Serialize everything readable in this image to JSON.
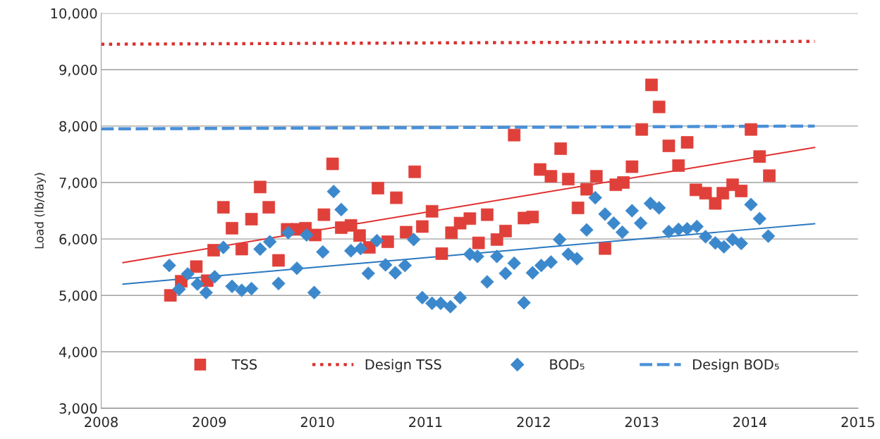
{
  "chart_data": {
    "type": "scatter",
    "ylabel": "Load (lb/day)",
    "xlim": [
      2008,
      2015
    ],
    "xticks": [
      2008,
      2009,
      2010,
      2011,
      2012,
      2013,
      2014,
      2015
    ],
    "ylim": [
      3000,
      10000
    ],
    "yticks": [
      {
        "value": 3000,
        "label": "3,000"
      },
      {
        "value": 4000,
        "label": "4,000"
      },
      {
        "value": 5000,
        "label": "5,000"
      },
      {
        "value": 6000,
        "label": "6,000"
      },
      {
        "value": 7000,
        "label": "7,000"
      },
      {
        "value": 8000,
        "label": "8,000"
      },
      {
        "value": 9000,
        "label": "9,000"
      },
      {
        "value": 10000,
        "label": "10,000"
      }
    ],
    "grid": "y",
    "legend": "bottom",
    "series": [
      {
        "name": "TSS",
        "marker": "square",
        "color": "#e0403a",
        "x": [
          2008.64,
          2008.74,
          2008.88,
          2008.98,
          2009.04,
          2009.13,
          2009.21,
          2009.3,
          2009.39,
          2009.47,
          2009.55,
          2009.64,
          2009.72,
          2009.81,
          2009.89,
          2009.98,
          2010.06,
          2010.14,
          2010.22,
          2010.31,
          2010.39,
          2010.48,
          2010.56,
          2010.65,
          2010.73,
          2010.82,
          2010.9,
          2010.97,
          2011.06,
          2011.15,
          2011.24,
          2011.32,
          2011.41,
          2011.49,
          2011.57,
          2011.66,
          2011.74,
          2011.82,
          2011.91,
          2011.99,
          2012.06,
          2012.16,
          2012.25,
          2012.32,
          2012.41,
          2012.49,
          2012.58,
          2012.66,
          2012.76,
          2012.83,
          2012.91,
          2013.0,
          2013.09,
          2013.16,
          2013.25,
          2013.34,
          2013.42,
          2013.5,
          2013.59,
          2013.68,
          2013.75,
          2013.84,
          2013.92,
          2014.01,
          2014.09,
          2014.18
        ],
        "values": [
          5000,
          5250,
          5510,
          5260,
          5800,
          6560,
          6190,
          5820,
          6350,
          6920,
          6560,
          5620,
          6170,
          6170,
          6190,
          6070,
          6430,
          7330,
          6200,
          6240,
          6060,
          5850,
          6900,
          5950,
          6730,
          6120,
          7190,
          6220,
          6490,
          5740,
          6110,
          6280,
          6360,
          5930,
          6430,
          5990,
          6140,
          7840,
          6370,
          6390,
          7230,
          7110,
          7600,
          7060,
          6550,
          6880,
          7110,
          5830,
          6960,
          7000,
          7280,
          7940,
          8730,
          8340,
          7650,
          7300,
          7710,
          6870,
          6810,
          6630,
          6810,
          6960,
          6850,
          7940,
          7460,
          7120
        ]
      },
      {
        "name": "Design TSS",
        "type": "line",
        "line_style": "dotted",
        "color": "#d93030",
        "x": [
          2008,
          2014.6
        ],
        "values": [
          9450,
          9500
        ]
      },
      {
        "name": "BOD₅",
        "marker": "diamond",
        "color": "#3c88cc",
        "x": [
          2008.63,
          2008.72,
          2008.8,
          2008.89,
          2008.97,
          2009.05,
          2009.13,
          2009.21,
          2009.3,
          2009.39,
          2009.47,
          2009.56,
          2009.64,
          2009.73,
          2009.81,
          2009.9,
          2009.97,
          2010.05,
          2010.15,
          2010.22,
          2010.31,
          2010.4,
          2010.47,
          2010.55,
          2010.63,
          2010.72,
          2010.81,
          2010.89,
          2010.97,
          2011.06,
          2011.14,
          2011.23,
          2011.32,
          2011.41,
          2011.48,
          2011.57,
          2011.66,
          2011.74,
          2011.82,
          2011.91,
          2011.99,
          2012.07,
          2012.16,
          2012.24,
          2012.32,
          2012.4,
          2012.49,
          2012.57,
          2012.66,
          2012.74,
          2012.82,
          2012.91,
          2012.99,
          2013.08,
          2013.16,
          2013.25,
          2013.34,
          2013.42,
          2013.51,
          2013.59,
          2013.68,
          2013.76,
          2013.84,
          2013.92,
          2014.01,
          2014.09,
          2014.17
        ],
        "values": [
          5530,
          5110,
          5380,
          5200,
          5050,
          5330,
          5850,
          5160,
          5090,
          5120,
          5820,
          5950,
          5210,
          6110,
          5480,
          6070,
          5050,
          5770,
          6840,
          6520,
          5790,
          5830,
          5390,
          5970,
          5540,
          5400,
          5530,
          5990,
          4960,
          4860,
          4860,
          4800,
          4960,
          5730,
          5690,
          5240,
          5690,
          5390,
          5570,
          4870,
          5400,
          5530,
          5590,
          5990,
          5730,
          5650,
          6160,
          6730,
          6440,
          6280,
          6120,
          6500,
          6280,
          6630,
          6550,
          6130,
          6170,
          6180,
          6220,
          6040,
          5930,
          5860,
          5990,
          5920,
          6610,
          6360,
          6050
        ]
      },
      {
        "name": "Design BOD₅",
        "type": "line",
        "line_style": "dashed",
        "color": "#4a90d8",
        "x": [
          2008,
          2014.6
        ],
        "values": [
          7950,
          8000
        ]
      },
      {
        "type": "line",
        "line_style": "solid",
        "color": "#e03030",
        "x": [
          2008.2,
          2014.6
        ],
        "values": [
          5580,
          7620
        ]
      },
      {
        "type": "line",
        "line_style": "solid",
        "color": "#2a78c0",
        "x": [
          2008.2,
          2014.6
        ],
        "values": [
          5200,
          6270
        ]
      }
    ]
  }
}
